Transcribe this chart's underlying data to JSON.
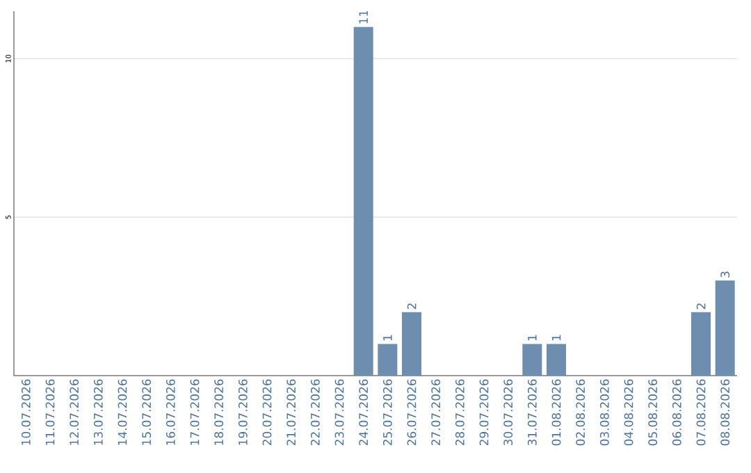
{
  "chart_data": {
    "type": "bar",
    "categories": [
      "10.07.2026",
      "11.07.2026",
      "12.07.2026",
      "13.07.2026",
      "14.07.2026",
      "15.07.2026",
      "16.07.2026",
      "17.07.2026",
      "18.07.2026",
      "19.07.2026",
      "20.07.2026",
      "21.07.2026",
      "22.07.2026",
      "23.07.2026",
      "24.07.2026",
      "25.07.2026",
      "26.07.2026",
      "27.07.2026",
      "28.07.2026",
      "29.07.2026",
      "30.07.2026",
      "31.07.2026",
      "01.08.2026",
      "02.08.2026",
      "03.08.2026",
      "04.08.2026",
      "05.08.2026",
      "06.08.2026",
      "07.08.2026",
      "08.08.2026"
    ],
    "values": [
      0,
      0,
      0,
      0,
      0,
      0,
      0,
      0,
      0,
      0,
      0,
      0,
      0,
      0,
      11,
      1,
      2,
      0,
      0,
      0,
      0,
      1,
      1,
      0,
      0,
      0,
      0,
      0,
      2,
      3
    ],
    "value_labels": [
      null,
      null,
      null,
      null,
      null,
      null,
      null,
      null,
      null,
      null,
      null,
      null,
      null,
      null,
      "11",
      "1",
      "2",
      null,
      null,
      null,
      null,
      "1",
      "1",
      null,
      null,
      null,
      null,
      null,
      "2",
      "3"
    ],
    "color": "#6e8eaf",
    "ylim": [
      0,
      11.5
    ],
    "yticks": [
      5,
      10
    ],
    "grid": "y"
  }
}
